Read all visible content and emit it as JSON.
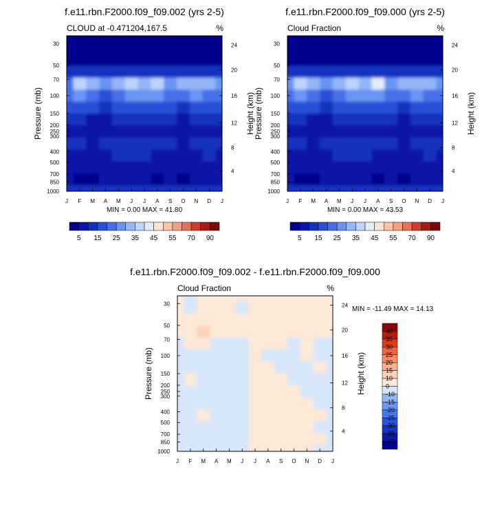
{
  "chart_data": [
    {
      "type": "heatmap",
      "title": "f.e11.rbn.F2000.f09_f09.002 (yrs 2-5)",
      "left_label": "CLOUD at -0.471204,167.5",
      "right_label": "%",
      "ylabel": "Pressure (mb)",
      "ylabel_right": "Height (km)",
      "months": [
        "J",
        "F",
        "M",
        "A",
        "M",
        "J",
        "J",
        "A",
        "S",
        "O",
        "N",
        "D",
        "J"
      ],
      "pressure_ticks": [
        "30",
        "50",
        "70",
        "100",
        "150",
        "200",
        "250",
        "300",
        "400",
        "500",
        "700",
        "850",
        "1000"
      ],
      "height_ticks": [
        "24",
        "20",
        "16",
        "12",
        "8",
        "4"
      ],
      "stats": "MIN =   0.00 MAX =  41.80",
      "min": 0.0,
      "max": 41.8,
      "colorbar_labels": [
        "5",
        "15",
        "25",
        "35",
        "45",
        "55",
        "70",
        "90"
      ],
      "level_colors": [
        "#00008c",
        "#0a16a8",
        "#1432c0",
        "#2a50d8",
        "#4670e8",
        "#6a94f2",
        "#93b6f8",
        "#bdd4fb",
        "#e2edfc",
        "#fde3d2",
        "#fbc3a8",
        "#f59f80",
        "#e8705a",
        "#cf3d2c",
        "#a81b14",
        "#7a0a0a"
      ],
      "grid_values": [
        [
          0,
          0,
          0,
          0,
          0,
          0,
          0,
          0,
          0,
          0,
          0,
          0,
          0
        ],
        [
          0,
          0,
          0,
          0,
          0,
          0,
          0,
          0,
          0,
          0,
          0,
          0,
          0
        ],
        [
          2,
          2,
          2,
          3,
          3,
          2,
          2,
          3,
          2,
          3,
          2,
          2,
          3
        ],
        [
          12,
          14,
          12,
          10,
          10,
          12,
          14,
          12,
          10,
          14,
          12,
          12,
          13
        ],
        [
          24,
          36,
          30,
          26,
          32,
          36,
          34,
          36,
          28,
          30,
          34,
          30,
          28
        ],
        [
          20,
          26,
          22,
          18,
          22,
          28,
          26,
          26,
          20,
          22,
          26,
          24,
          22
        ],
        [
          16,
          18,
          16,
          14,
          16,
          18,
          18,
          18,
          16,
          14,
          16,
          16,
          16
        ],
        [
          12,
          10,
          9,
          8,
          10,
          12,
          11,
          10,
          10,
          9,
          10,
          11,
          12
        ],
        [
          8,
          6,
          5,
          5,
          7,
          9,
          8,
          7,
          7,
          5,
          6,
          7,
          8
        ],
        [
          11,
          10,
          9,
          10,
          12,
          13,
          12,
          10,
          10,
          9,
          10,
          11,
          11
        ],
        [
          9,
          8,
          8,
          9,
          10,
          11,
          10,
          9,
          9,
          8,
          9,
          10,
          9
        ],
        [
          8,
          7,
          6,
          7,
          8,
          9,
          8,
          7,
          8,
          6,
          7,
          8,
          8
        ],
        [
          6,
          4,
          4,
          5,
          5,
          6,
          5,
          4,
          5,
          4,
          5,
          5,
          6
        ],
        [
          11,
          11,
          11,
          11,
          11,
          11,
          11,
          11,
          11,
          11,
          11,
          11,
          11
        ]
      ]
    },
    {
      "type": "heatmap",
      "title": "f.e11.rbn.F2000.f09_f09.000 (yrs 2-5)",
      "left_label": "Cloud Fraction",
      "right_label": "%",
      "ylabel": "Pressure (mb)",
      "ylabel_right": "Height (km)",
      "months": [
        "J",
        "F",
        "M",
        "A",
        "M",
        "J",
        "J",
        "A",
        "S",
        "O",
        "N",
        "D",
        "J"
      ],
      "pressure_ticks": [
        "30",
        "50",
        "70",
        "100",
        "150",
        "200",
        "250",
        "300",
        "400",
        "500",
        "700",
        "850",
        "1000"
      ],
      "height_ticks": [
        "24",
        "20",
        "16",
        "12",
        "8",
        "4"
      ],
      "stats": "MIN =   0.00 MAX =  43.53",
      "min": 0.0,
      "max": 43.53,
      "colorbar_labels": [
        "5",
        "15",
        "25",
        "35",
        "45",
        "55",
        "70",
        "90"
      ],
      "level_colors": [
        "#00008c",
        "#0a16a8",
        "#1432c0",
        "#2a50d8",
        "#4670e8",
        "#6a94f2",
        "#93b6f8",
        "#bdd4fb",
        "#e2edfc",
        "#fde3d2",
        "#fbc3a8",
        "#f59f80",
        "#e8705a",
        "#cf3d2c",
        "#a81b14",
        "#7a0a0a"
      ],
      "grid_values": [
        [
          0,
          0,
          0,
          0,
          0,
          0,
          0,
          0,
          0,
          0,
          0,
          0,
          0
        ],
        [
          0,
          0,
          0,
          0,
          0,
          0,
          0,
          0,
          0,
          0,
          0,
          0,
          0
        ],
        [
          2,
          3,
          2,
          3,
          3,
          2,
          3,
          3,
          2,
          3,
          2,
          2,
          3
        ],
        [
          13,
          14,
          12,
          10,
          11,
          12,
          14,
          13,
          11,
          14,
          12,
          12,
          13
        ],
        [
          26,
          38,
          30,
          26,
          32,
          36,
          34,
          40,
          28,
          30,
          34,
          30,
          28
        ],
        [
          20,
          28,
          22,
          18,
          22,
          28,
          26,
          26,
          20,
          22,
          26,
          24,
          22
        ],
        [
          16,
          18,
          16,
          14,
          16,
          18,
          18,
          18,
          16,
          14,
          16,
          16,
          16
        ],
        [
          12,
          10,
          9,
          8,
          10,
          12,
          11,
          10,
          10,
          9,
          10,
          11,
          12
        ],
        [
          8,
          5,
          6,
          5,
          7,
          9,
          8,
          7,
          7,
          5,
          6,
          7,
          8
        ],
        [
          11,
          10,
          9,
          10,
          12,
          13,
          12,
          10,
          10,
          9,
          10,
          11,
          11
        ],
        [
          9,
          8,
          8,
          9,
          10,
          11,
          10,
          9,
          9,
          8,
          9,
          10,
          9
        ],
        [
          8,
          7,
          6,
          7,
          8,
          9,
          8,
          7,
          8,
          6,
          7,
          8,
          8
        ],
        [
          6,
          4,
          4,
          5,
          5,
          6,
          5,
          4,
          5,
          4,
          5,
          5,
          6
        ],
        [
          11,
          11,
          11,
          11,
          11,
          11,
          11,
          11,
          11,
          11,
          11,
          11,
          11
        ]
      ]
    },
    {
      "type": "heatmap",
      "title": "f.e11.rbn.F2000.f09_f09.002 - f.e11.rbn.F2000.f09_f09.000",
      "left_label": "Cloud Fraction",
      "right_label": "%",
      "ylabel": "Pressure (mb)",
      "ylabel_right": "Height (km)",
      "months": [
        "J",
        "F",
        "M",
        "A",
        "M",
        "J",
        "J",
        "A",
        "S",
        "O",
        "N",
        "D",
        "J"
      ],
      "pressure_ticks": [
        "30",
        "50",
        "70",
        "100",
        "150",
        "200",
        "250",
        "300",
        "400",
        "500",
        "700",
        "850",
        "1000"
      ],
      "height_ticks": [
        "24",
        "20",
        "16",
        "12",
        "8",
        "4"
      ],
      "stats": "MIN = -11.49 MAX =  14.13",
      "min": -11.49,
      "max": 14.13,
      "colorbar_labels": [
        "40",
        "35",
        "30",
        "25",
        "20",
        "15",
        "10",
        "0",
        "-10",
        "-15",
        "-20",
        "-25",
        "-30",
        "-35",
        "-40"
      ],
      "level_colors": [
        "#00008c",
        "#0a1aa8",
        "#1836c4",
        "#2a56dc",
        "#4678ea",
        "#6a98f2",
        "#93b8f8",
        "#d8e6fa",
        "#fde9d8",
        "#fdd2b8",
        "#fbb090",
        "#f88c64",
        "#f3643a",
        "#e23a18",
        "#b81a0c",
        "#8c0808"
      ],
      "grid_values": [
        [
          1,
          -2,
          1,
          1,
          1,
          1,
          1,
          1,
          1,
          1,
          1,
          1,
          1
        ],
        [
          1,
          -2,
          1,
          1,
          1,
          -2,
          1,
          1,
          1,
          1,
          1,
          1,
          1
        ],
        [
          1,
          1,
          1,
          1,
          1,
          1,
          1,
          1,
          1,
          1,
          1,
          1,
          1
        ],
        [
          1,
          1,
          12,
          1,
          1,
          1,
          1,
          1,
          1,
          1,
          1,
          1,
          1
        ],
        [
          -2,
          1,
          1,
          -2,
          -2,
          -2,
          1,
          1,
          1,
          -2,
          1,
          -2,
          -2
        ],
        [
          -2,
          -2,
          -2,
          -2,
          -2,
          -6,
          1,
          -2,
          -2,
          -2,
          1,
          -2,
          -2
        ],
        [
          -2,
          -2,
          -2,
          -2,
          -2,
          -2,
          1,
          1,
          -2,
          -2,
          -2,
          1,
          -2
        ],
        [
          -2,
          1,
          -2,
          -2,
          -2,
          -2,
          1,
          1,
          1,
          -2,
          -2,
          -2,
          -2
        ],
        [
          -2,
          -2,
          -2,
          -2,
          -2,
          -2,
          1,
          1,
          1,
          1,
          -2,
          -2,
          -2
        ],
        [
          -2,
          -2,
          -2,
          -2,
          -2,
          -2,
          1,
          1,
          1,
          1,
          1,
          -2,
          -2
        ],
        [
          -2,
          -2,
          1,
          -2,
          -2,
          -2,
          1,
          1,
          1,
          1,
          1,
          1,
          -2
        ],
        [
          -2,
          -2,
          -2,
          -2,
          -2,
          -2,
          1,
          1,
          1,
          1,
          1,
          -2,
          -2
        ],
        [
          -2,
          -2,
          -2,
          -2,
          -2,
          -2,
          1,
          1,
          1,
          1,
          1,
          1,
          -2
        ],
        [
          -2,
          -2,
          -2,
          -2,
          -2,
          -2,
          1,
          1,
          1,
          1,
          1,
          -2,
          -2
        ]
      ]
    }
  ]
}
